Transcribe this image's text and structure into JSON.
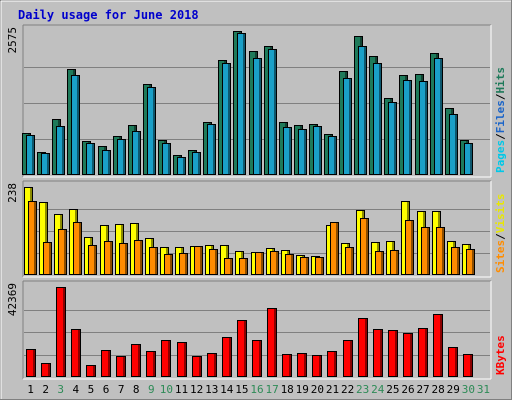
{
  "chart_data": {
    "type": "bar",
    "title": "Daily usage for June 2018",
    "categories": [
      "1",
      "2",
      "3",
      "4",
      "5",
      "6",
      "7",
      "8",
      "9",
      "10",
      "11",
      "12",
      "13",
      "14",
      "15",
      "16",
      "17",
      "18",
      "19",
      "20",
      "21",
      "22",
      "23",
      "24",
      "25",
      "26",
      "27",
      "28",
      "29",
      "30",
      "31"
    ],
    "weekend_days": [
      "3",
      "9",
      "10",
      "16",
      "17",
      "23",
      "24",
      "30",
      "31"
    ],
    "panels": [
      {
        "name": "pages-files-hits",
        "max_label": "2575",
        "ylim": [
          0,
          2575
        ],
        "axis_labels": [
          "Pages",
          "Files",
          "Hits"
        ],
        "series": [
          {
            "name": "Hits",
            "color": "#1e7a5a",
            "values": [
              750,
              420,
              1000,
              1900,
              600,
              520,
              700,
              890,
              1620,
              620,
              350,
              450,
              950,
              2060,
              2575,
              2220,
              2310,
              950,
              900,
              920,
              730,
              1860,
              2480,
              2130,
              1370,
              1780,
              1810,
              2190,
              1200,
              620,
              0
            ]
          },
          {
            "name": "Files",
            "color": "#1aa0c8",
            "values": [
              720,
              400,
              880,
              1790,
              580,
              450,
              650,
              790,
              1570,
              570,
              330,
              420,
              920,
              2010,
              2540,
              2090,
              2260,
              860,
              830,
              880,
              700,
              1740,
              2300,
              2000,
              1310,
              1700,
              1680,
              2100,
              1090,
              570,
              0
            ]
          },
          {
            "name": "Pages",
            "color": "#00c8e8",
            "values": [
              0,
              0,
              0,
              0,
              0,
              0,
              0,
              0,
              0,
              0,
              0,
              0,
              0,
              0,
              0,
              0,
              0,
              0,
              0,
              0,
              0,
              0,
              0,
              0,
              0,
              0,
              0,
              0,
              0,
              0,
              0
            ]
          }
        ]
      },
      {
        "name": "visits-sites",
        "max_label": "238",
        "ylim": [
          0,
          238
        ],
        "axis_labels": [
          "Sites",
          "Visits"
        ],
        "series": [
          {
            "name": "Visits",
            "color": "#ffff00",
            "values": [
              238,
              198,
              165,
              178,
              103,
              136,
              138,
              140,
              99,
              75,
              75,
              79,
              82,
              80,
              66,
              63,
              72,
              68,
              55,
              52,
              135,
              86,
              175,
              90,
              92,
              200,
              173,
              173,
              92,
              84,
              0
            ]
          },
          {
            "name": "Sites",
            "color": "#ff8c00",
            "values": [
              200,
              88,
              125,
              142,
              80,
              93,
              87,
              95,
              77,
              57,
              60,
              78,
              70,
              47,
              45,
              63,
              65,
              58,
              50,
              48,
              142,
              75,
              155,
              65,
              68,
              150,
              130,
              130,
              77,
              70,
              0
            ]
          }
        ]
      },
      {
        "name": "kbytes",
        "max_label": "42369",
        "ylim": [
          0,
          42369
        ],
        "axis_labels": [
          "KBytes"
        ],
        "series": [
          {
            "name": "KBytes",
            "color": "#ff0000",
            "values": [
              13000,
              6500,
              42369,
              22500,
              5800,
              12600,
              9800,
              15600,
              12300,
              17500,
              16400,
              9800,
              11200,
              18700,
              26700,
              17600,
              32600,
              11000,
              11200,
              10400,
              12200,
              17400,
              27700,
              22600,
              22000,
              20500,
              23300,
              29700,
              14200,
              10600,
              0
            ]
          }
        ]
      }
    ]
  }
}
